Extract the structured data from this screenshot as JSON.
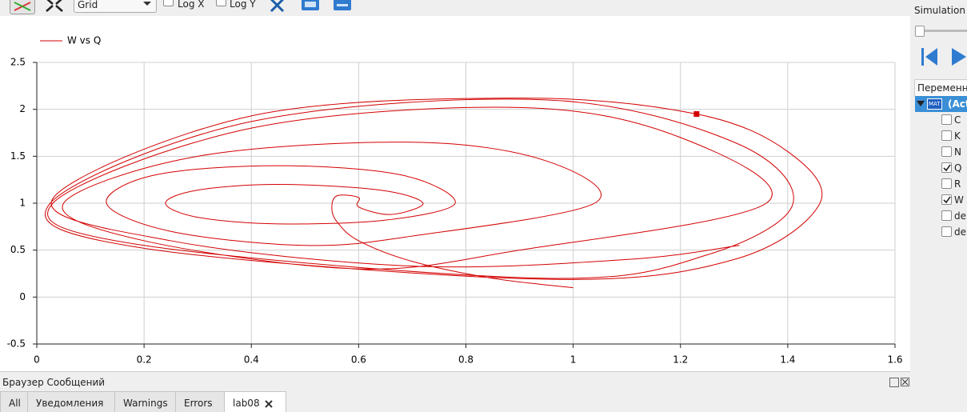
{
  "toolbar": {
    "grid_mode": "Grid",
    "log_x": "Log X",
    "log_y": "Log Y"
  },
  "chart_data": {
    "type": "line",
    "series": [
      {
        "name": "W vs Q",
        "color": "#d40000",
        "x": [
          1.0,
          0.85,
          0.7,
          0.6,
          0.56,
          0.55,
          0.56,
          0.6,
          0.6,
          0.66,
          0.72,
          0.64,
          0.45,
          0.3,
          0.24,
          0.3,
          0.45,
          0.65,
          0.78,
          0.68,
          0.45,
          0.22,
          0.13,
          0.25,
          0.5,
          0.7,
          1.04,
          0.95,
          0.7,
          0.3,
          0.05,
          0.2,
          0.6,
          0.9,
          1.36,
          1.2,
          0.9,
          0.4,
          0.03,
          0.2,
          0.95,
          1.25,
          1.41,
          1.3,
          0.95,
          0.4,
          0.025,
          0.2,
          0.95,
          1.3,
          1.46,
          1.4,
          1.23,
          0.9,
          0.4,
          0.03,
          0.25,
          0.7,
          1.1,
          1.31
        ],
        "values": [
          0.1,
          0.2,
          0.38,
          0.6,
          0.8,
          0.95,
          1.08,
          1.06,
          0.96,
          0.88,
          1.0,
          1.14,
          1.2,
          1.14,
          1.0,
          0.85,
          0.78,
          0.82,
          1.0,
          1.3,
          1.4,
          1.3,
          1.0,
          0.7,
          0.55,
          0.65,
          1.0,
          1.45,
          1.65,
          1.5,
          1.0,
          0.6,
          0.3,
          0.5,
          1.0,
          1.7,
          2.02,
          1.8,
          1.0,
          0.55,
          0.2,
          0.45,
          1.0,
          1.65,
          2.1,
          1.87,
          1.0,
          0.52,
          0.19,
          0.4,
          1.0,
          1.55,
          1.95,
          2.12,
          1.93,
          1.05,
          0.6,
          0.33,
          0.4,
          0.55
        ]
      }
    ],
    "marker": {
      "x": 1.23,
      "y": 1.95
    },
    "xlim": [
      0,
      1.6
    ],
    "ylim": [
      -0.5,
      2.5
    ],
    "xticks": [
      0,
      0.2,
      0.4,
      0.6,
      0.8,
      1,
      1.2,
      1.4,
      1.6
    ],
    "yticks": [
      -0.5,
      0,
      0.5,
      1,
      1.5,
      2,
      2.5
    ],
    "grid": true,
    "log_x": false,
    "log_y": false,
    "legend": "top-left"
  },
  "variables_panel": {
    "title": "Simulation T",
    "header": "Переменны",
    "root_icon": "MAT",
    "root": "(Act",
    "variables": [
      {
        "name": "C",
        "checked": false
      },
      {
        "name": "K",
        "checked": false
      },
      {
        "name": "N",
        "checked": false
      },
      {
        "name": "Q",
        "checked": true
      },
      {
        "name": "R",
        "checked": false
      },
      {
        "name": "W",
        "checked": true
      },
      {
        "name": "der",
        "checked": false
      },
      {
        "name": "der",
        "checked": false
      }
    ]
  },
  "messages": {
    "title": "Браузер Сообщений",
    "tabs": [
      "All",
      "Уведомления",
      "Warnings",
      "Errors",
      "lab08"
    ]
  }
}
